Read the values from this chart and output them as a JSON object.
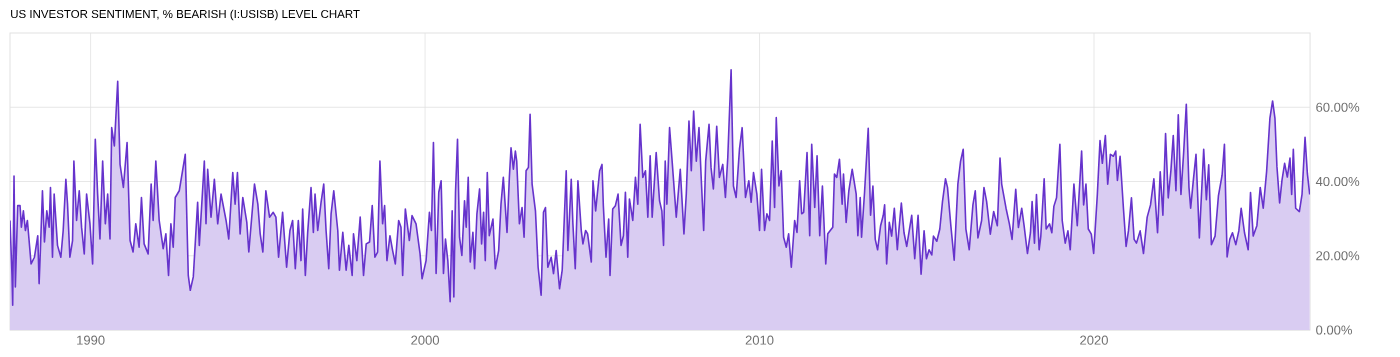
{
  "chart_data": {
    "type": "area",
    "title": "US INVESTOR SENTIMENT, % BEARISH (I:USISB) LEVEL CHART",
    "xlim": [
      1987.59,
      2026.46
    ],
    "xticks": [
      1990,
      2000,
      2010,
      2020
    ],
    "ylim": [
      0,
      80
    ],
    "yticks": [
      {
        "value": 0,
        "label": "0.00%"
      },
      {
        "value": 20,
        "label": "20.00%"
      },
      {
        "value": 40,
        "label": "40.00%"
      },
      {
        "value": 60,
        "label": "60.00%"
      }
    ],
    "grid": true,
    "series": [
      {
        "color": "#6633cc",
        "x": [
          1987.59,
          1987.65,
          1987.67,
          1987.71,
          1987.75,
          1987.82,
          1987.89,
          1987.93,
          1987.99,
          1988.05,
          1988.11,
          1988.22,
          1988.32,
          1988.42,
          1988.46,
          1988.5,
          1988.56,
          1988.62,
          1988.69,
          1988.76,
          1988.8,
          1988.86,
          1988.91,
          1989.01,
          1989.11,
          1989.18,
          1989.26,
          1989.31,
          1989.38,
          1989.46,
          1989.5,
          1989.58,
          1989.66,
          1989.73,
          1989.81,
          1989.88,
          1989.98,
          1990.06,
          1990.14,
          1990.21,
          1990.28,
          1990.36,
          1990.44,
          1990.51,
          1990.58,
          1990.63,
          1990.71,
          1990.81,
          1990.88,
          1990.98,
          1991.09,
          1991.18,
          1991.27,
          1991.35,
          1991.45,
          1991.52,
          1991.6,
          1991.72,
          1991.81,
          1991.87,
          1991.95,
          1992.05,
          1992.17,
          1992.25,
          1992.33,
          1992.4,
          1992.47,
          1992.53,
          1992.65,
          1992.75,
          1992.83,
          1992.92,
          1992.98,
          1993.07,
          1993.2,
          1993.25,
          1993.4,
          1993.45,
          1993.5,
          1993.6,
          1993.7,
          1993.8,
          1993.9,
          1994.05,
          1994.13,
          1994.25,
          1994.32,
          1994.39,
          1994.47,
          1994.55,
          1994.67,
          1994.73,
          1994.9,
          1995.0,
          1995.07,
          1995.15,
          1995.24,
          1995.35,
          1995.46,
          1995.54,
          1995.62,
          1995.74,
          1995.86,
          1995.96,
          1996.04,
          1996.12,
          1996.21,
          1996.29,
          1996.34,
          1996.42,
          1996.49,
          1996.59,
          1996.66,
          1996.71,
          1996.79,
          1996.89,
          1996.97,
          1997.04,
          1997.12,
          1997.19,
          1997.27,
          1997.39,
          1997.44,
          1997.54,
          1997.64,
          1997.72,
          1997.82,
          1997.86,
          1997.96,
          1998.06,
          1998.16,
          1998.24,
          1998.34,
          1998.42,
          1998.5,
          1998.58,
          1998.65,
          1998.73,
          1998.79,
          1998.86,
          1998.95,
          1999.03,
          1999.11,
          1999.21,
          1999.28,
          1999.33,
          1999.41,
          1999.53,
          1999.61,
          1999.73,
          1999.85,
          1999.91,
          2000.03,
          2000.13,
          2000.19,
          2000.25,
          2000.33,
          2000.41,
          2000.48,
          2000.55,
          2000.61,
          2000.68,
          2000.75,
          2000.81,
          2000.86,
          2000.91,
          2000.97,
          2001.03,
          2001.1,
          2001.18,
          2001.23,
          2001.29,
          2001.35,
          2001.43,
          2001.48,
          2001.55,
          2001.63,
          2001.69,
          2001.75,
          2001.8,
          2001.86,
          2001.92,
          2002.03,
          2002.1,
          2002.2,
          2002.27,
          2002.34,
          2002.45,
          2002.52,
          2002.57,
          2002.64,
          2002.7,
          2002.74,
          2002.82,
          2002.9,
          2002.96,
          2003.02,
          2003.09,
          2003.14,
          2003.2,
          2003.3,
          2003.38,
          2003.47,
          2003.54,
          2003.6,
          2003.67,
          2003.77,
          2003.84,
          2003.92,
          2004.02,
          2004.1,
          2004.17,
          2004.22,
          2004.27,
          2004.37,
          2004.42,
          2004.49,
          2004.57,
          2004.67,
          2004.72,
          2004.8,
          2004.86,
          2004.97,
          2005.02,
          2005.1,
          2005.22,
          2005.29,
          2005.33,
          2005.41,
          2005.49,
          2005.53,
          2005.61,
          2005.69,
          2005.77,
          2005.86,
          2005.93,
          2005.99,
          2006.06,
          2006.11,
          2006.21,
          2006.29,
          2006.36,
          2006.43,
          2006.51,
          2006.59,
          2006.66,
          2006.73,
          2006.79,
          2006.91,
          2007.01,
          2007.08,
          2007.13,
          2007.18,
          2007.23,
          2007.31,
          2007.39,
          2007.51,
          2007.63,
          2007.74,
          2007.81,
          2007.89,
          2007.96,
          2008.03,
          2008.11,
          2008.19,
          2008.26,
          2008.33,
          2008.39,
          2008.49,
          2008.55,
          2008.62,
          2008.72,
          2008.8,
          2008.9,
          2008.98,
          2009.05,
          2009.15,
          2009.22,
          2009.3,
          2009.4,
          2009.48,
          2009.58,
          2009.68,
          2009.75,
          2009.82,
          2009.92,
          2010.0,
          2010.06,
          2010.15,
          2010.22,
          2010.3,
          2010.38,
          2010.45,
          2010.5,
          2010.58,
          2010.65,
          2010.72,
          2010.8,
          2010.87,
          2010.95,
          2011.05,
          2011.12,
          2011.2,
          2011.26,
          2011.32,
          2011.42,
          2011.5,
          2011.56,
          2011.65,
          2011.72,
          2011.8,
          2011.88,
          2011.98,
          2012.04,
          2012.19,
          2012.24,
          2012.31,
          2012.39,
          2012.47,
          2012.51,
          2012.59,
          2012.67,
          2012.77,
          2012.89,
          2012.94,
          2013.01,
          2013.05,
          2013.14,
          2013.25,
          2013.32,
          2013.39,
          2013.46,
          2013.53,
          2013.62,
          2013.7,
          2013.74,
          2013.8,
          2013.88,
          2013.95,
          2014.03,
          2014.12,
          2014.16,
          2014.24,
          2014.32,
          2014.4,
          2014.55,
          2014.64,
          2014.74,
          2014.83,
          2014.92,
          2014.99,
          2015.07,
          2015.15,
          2015.2,
          2015.3,
          2015.39,
          2015.47,
          2015.56,
          2015.62,
          2015.72,
          2015.82,
          2015.93,
          2016.01,
          2016.09,
          2016.17,
          2016.27,
          2016.38,
          2016.45,
          2016.53,
          2016.64,
          2016.71,
          2016.79,
          2016.9,
          2017.0,
          2017.11,
          2017.19,
          2017.24,
          2017.37,
          2017.47,
          2017.55,
          2017.66,
          2017.74,
          2017.84,
          2017.91,
          2018.01,
          2018.1,
          2018.15,
          2018.22,
          2018.28,
          2018.36,
          2018.41,
          2018.51,
          2018.57,
          2018.67,
          2018.74,
          2018.8,
          2018.88,
          2018.98,
          2019.05,
          2019.14,
          2019.22,
          2019.29,
          2019.4,
          2019.5,
          2019.63,
          2019.69,
          2019.76,
          2019.83,
          2019.92,
          2019.99,
          2020.1,
          2020.18,
          2020.25,
          2020.34,
          2020.41,
          2020.49,
          2020.58,
          2020.65,
          2020.7,
          2020.78,
          2020.88,
          2020.96,
          2021.03,
          2021.12,
          2021.2,
          2021.27,
          2021.38,
          2021.48,
          2021.59,
          2021.69,
          2021.79,
          2021.9,
          2021.98,
          2022.06,
          2022.14,
          2022.22,
          2022.3,
          2022.37,
          2022.45,
          2022.52,
          2022.6,
          2022.68,
          2022.76,
          2022.84,
          2022.89,
          2022.97,
          2023.05,
          2023.15,
          2023.28,
          2023.36,
          2023.43,
          2023.51,
          2023.62,
          2023.72,
          2023.83,
          2023.9,
          2023.98,
          2024.06,
          2024.14,
          2024.24,
          2024.33,
          2024.4,
          2024.5,
          2024.61,
          2024.68,
          2024.76,
          2024.87,
          2024.97,
          2025.06,
          2025.16,
          2025.26,
          2025.34,
          2025.41,
          2025.47,
          2025.55,
          2025.62,
          2025.7,
          2025.78,
          2025.86,
          2025.91,
          2025.96,
          2026.03,
          2026.14,
          2026.22,
          2026.31,
          2026.38,
          2026.45
        ],
        "values": [
          29.5,
          14.7,
          6.7,
          41.5,
          11.6,
          33.5,
          33.5,
          27.7,
          32.1,
          26.8,
          29.5,
          17.8,
          19.6,
          25.4,
          12.5,
          21.9,
          37.5,
          23.7,
          32.1,
          27.7,
          38.4,
          19.6,
          36.6,
          22.8,
          19.6,
          26.8,
          40.6,
          33.9,
          19.6,
          24.1,
          45.5,
          29.5,
          37.5,
          27.7,
          20.5,
          36.6,
          28.6,
          17.8,
          51.4,
          36.6,
          24.5,
          45.5,
          28.6,
          36.6,
          24.5,
          54.5,
          49.6,
          67.0,
          44.6,
          38.4,
          50.5,
          24.1,
          21.0,
          28.6,
          22.3,
          35.7,
          23.2,
          20.5,
          39.3,
          29.5,
          45.5,
          29.5,
          21.9,
          25.9,
          14.7,
          28.6,
          22.3,
          35.7,
          37.5,
          42.9,
          47.3,
          14.7,
          10.7,
          14.3,
          34.4,
          22.8,
          45.5,
          28.6,
          43.3,
          30.4,
          40.6,
          28.6,
          36.6,
          29.5,
          24.5,
          42.4,
          33.9,
          42.4,
          25.9,
          35.7,
          29.0,
          21.0,
          39.3,
          33.9,
          25.9,
          21.0,
          37.5,
          30.4,
          31.7,
          30.4,
          19.6,
          31.7,
          16.9,
          26.8,
          29.5,
          16.5,
          29.5,
          18.7,
          32.6,
          14.7,
          26.3,
          38.4,
          26.3,
          36.6,
          26.8,
          34.4,
          39.3,
          26.8,
          16.5,
          31.3,
          37.5,
          26.8,
          16.1,
          26.3,
          16.1,
          22.8,
          14.7,
          25.9,
          18.7,
          30.4,
          14.7,
          23.2,
          23.7,
          33.5,
          19.6,
          21.0,
          45.5,
          28.6,
          33.5,
          18.7,
          25.4,
          21.4,
          17.8,
          29.5,
          27.7,
          14.7,
          32.6,
          24.1,
          30.8,
          28.6,
          20.5,
          13.8,
          18.7,
          31.7,
          26.8,
          50.5,
          15.2,
          37.1,
          40.2,
          15.2,
          24.5,
          18.7,
          7.6,
          32.1,
          8.9,
          37.1,
          51.4,
          25.0,
          20.1,
          34.8,
          27.7,
          41.1,
          18.3,
          26.3,
          16.5,
          31.3,
          38.0,
          23.2,
          31.7,
          18.7,
          42.4,
          25.4,
          29.9,
          16.5,
          21.4,
          33.9,
          41.1,
          26.3,
          41.1,
          49.1,
          43.3,
          48.2,
          45.5,
          28.6,
          33.0,
          25.0,
          42.9,
          43.8,
          58.1,
          39.3,
          32.1,
          16.9,
          9.4,
          31.7,
          33.0,
          16.9,
          19.6,
          15.2,
          21.4,
          11.1,
          16.1,
          31.7,
          42.9,
          21.4,
          40.6,
          28.6,
          16.5,
          40.2,
          26.8,
          23.2,
          26.8,
          25.9,
          18.3,
          40.2,
          32.1,
          42.9,
          44.6,
          33.5,
          19.6,
          29.9,
          14.7,
          32.6,
          33.5,
          36.6,
          22.8,
          25.4,
          37.1,
          19.6,
          35.3,
          29.5,
          41.1,
          33.9,
          55.4,
          41.1,
          42.9,
          30.4,
          46.9,
          30.4,
          47.8,
          34.8,
          32.1,
          22.8,
          45.5,
          33.9,
          54.5,
          45.1,
          30.4,
          43.3,
          25.9,
          36.6,
          56.3,
          42.9,
          59.0,
          45.5,
          54.5,
          40.2,
          26.8,
          45.5,
          55.4,
          43.8,
          38.0,
          54.9,
          41.1,
          44.6,
          35.7,
          46.4,
          70.1,
          38.8,
          35.7,
          48.7,
          54.5,
          35.7,
          40.2,
          34.4,
          42.4,
          36.6,
          26.8,
          43.3,
          26.8,
          31.3,
          29.5,
          50.9,
          33.0,
          57.2,
          38.8,
          42.9,
          25.0,
          22.3,
          25.9,
          16.9,
          29.5,
          26.3,
          40.2,
          31.3,
          31.7,
          47.8,
          25.4,
          50.0,
          33.0,
          46.9,
          25.4,
          38.8,
          17.8,
          25.9,
          27.7,
          42.0,
          41.1,
          46.0,
          33.9,
          42.0,
          29.0,
          37.5,
          43.3,
          36.6,
          25.4,
          35.7,
          25.0,
          37.1,
          54.3,
          30.9,
          38.8,
          24.4,
          21.6,
          28.1,
          30.9,
          33.7,
          17.8,
          29.0,
          25.3,
          32.8,
          21.6,
          26.2,
          34.2,
          26.2,
          22.5,
          30.9,
          19.2,
          30.9,
          15.0,
          26.7,
          19.2,
          21.6,
          20.2,
          25.3,
          23.9,
          27.2,
          34.6,
          40.7,
          38.4,
          28.1,
          18.8,
          39.3,
          45.4,
          48.7,
          27.2,
          21.6,
          33.7,
          37.5,
          24.8,
          29.5,
          38.4,
          34.6,
          25.8,
          31.9,
          28.1,
          46.3,
          39.3,
          32.8,
          28.6,
          24.4,
          37.9,
          27.6,
          32.8,
          28.1,
          20.6,
          26.2,
          34.6,
          23.4,
          36.5,
          21.6,
          25.3,
          40.7,
          27.2,
          28.6,
          26.2,
          33.3,
          35.6,
          50.0,
          29.5,
          23.4,
          26.7,
          21.6,
          39.3,
          28.1,
          48.2,
          33.7,
          39.3,
          27.2,
          25.8,
          20.6,
          36.5,
          51.0,
          44.9,
          52.4,
          39.3,
          47.3,
          46.8,
          48.2,
          40.3,
          46.8,
          32.8,
          22.5,
          26.7,
          35.6,
          24.4,
          23.4,
          26.7,
          20.6,
          30.4,
          33.7,
          40.7,
          26.2,
          42.6,
          30.9,
          52.9,
          35.6,
          43.0,
          52.4,
          37.5,
          58.0,
          36.5,
          47.7,
          60.8,
          38.4,
          32.8,
          40.3,
          47.3,
          24.8,
          48.7,
          35.1,
          44.5,
          23.0,
          25.3,
          36.1,
          41.7,
          50.0,
          19.7,
          24.4,
          26.2,
          23.0,
          26.7,
          32.8,
          26.2,
          21.6,
          37.0,
          25.3,
          28.1,
          38.4,
          32.8,
          42.6,
          57.1,
          61.7,
          57.1,
          44.0,
          34.2,
          40.3,
          44.9,
          41.2,
          46.3,
          36.5,
          48.7,
          32.8,
          31.9,
          36.5,
          51.9,
          42.1,
          36.5
        ]
      }
    ]
  }
}
